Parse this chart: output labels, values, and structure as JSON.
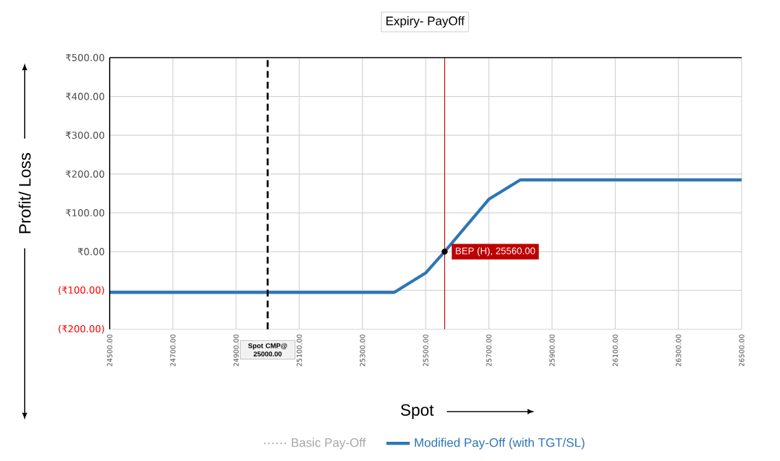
{
  "chart_data": {
    "type": "line",
    "title": "Expiry- PayOff",
    "xlabel": "Spot",
    "ylabel": "Profit/ Loss",
    "series": [
      {
        "name": "Basic Pay-Off",
        "color": "#a6a6a6",
        "line_style": "dotted"
      },
      {
        "name": "Modified Pay-Off (with TGT/SL)",
        "color": "#2e75b6",
        "line_style": "solid",
        "x": [
          24500,
          25400,
          25500,
          25560,
          25700,
          25800,
          26500
        ],
        "values": [
          -105,
          -105,
          -55,
          0,
          135,
          185,
          185
        ]
      }
    ],
    "xlim": [
      24500,
      26500
    ],
    "ylim": [
      -200,
      500
    ],
    "xticks": [
      {
        "value": 24500,
        "label": "24500.00"
      },
      {
        "value": 24700,
        "label": "24700.00"
      },
      {
        "value": 24900,
        "label": "24900.00"
      },
      {
        "value": 25100,
        "label": "25100.00"
      },
      {
        "value": 25300,
        "label": "25300.00"
      },
      {
        "value": 25500,
        "label": "25500.00"
      },
      {
        "value": 25700,
        "label": "25700.00"
      },
      {
        "value": 25900,
        "label": "25900.00"
      },
      {
        "value": 26100,
        "label": "26100.00"
      },
      {
        "value": 26300,
        "label": "26300.00"
      },
      {
        "value": 26500,
        "label": "26500.00"
      }
    ],
    "yticks": [
      {
        "value": -200,
        "label": "(₹200.00)"
      },
      {
        "value": -100,
        "label": "(₹100.00)"
      },
      {
        "value": 0,
        "label": "₹0.00"
      },
      {
        "value": 100,
        "label": "₹100.00"
      },
      {
        "value": 200,
        "label": "₹200.00"
      },
      {
        "value": 300,
        "label": "₹300.00"
      },
      {
        "value": 400,
        "label": "₹400.00"
      },
      {
        "value": 500,
        "label": "₹500.00"
      }
    ],
    "ref_lines": [
      {
        "axis": "x",
        "value": 25000,
        "color": "#000000",
        "line_style": "dashed"
      },
      {
        "axis": "x",
        "value": 25560,
        "color": "#c00000",
        "line_style": "solid"
      }
    ],
    "annotations": [
      {
        "text": "Spot CMP@ 25000.00",
        "x": 25000,
        "y": -200
      },
      {
        "text": "BEP (H), 25560.00",
        "x": 25560,
        "y": 0
      }
    ],
    "grid": true,
    "legend": "bottom"
  }
}
